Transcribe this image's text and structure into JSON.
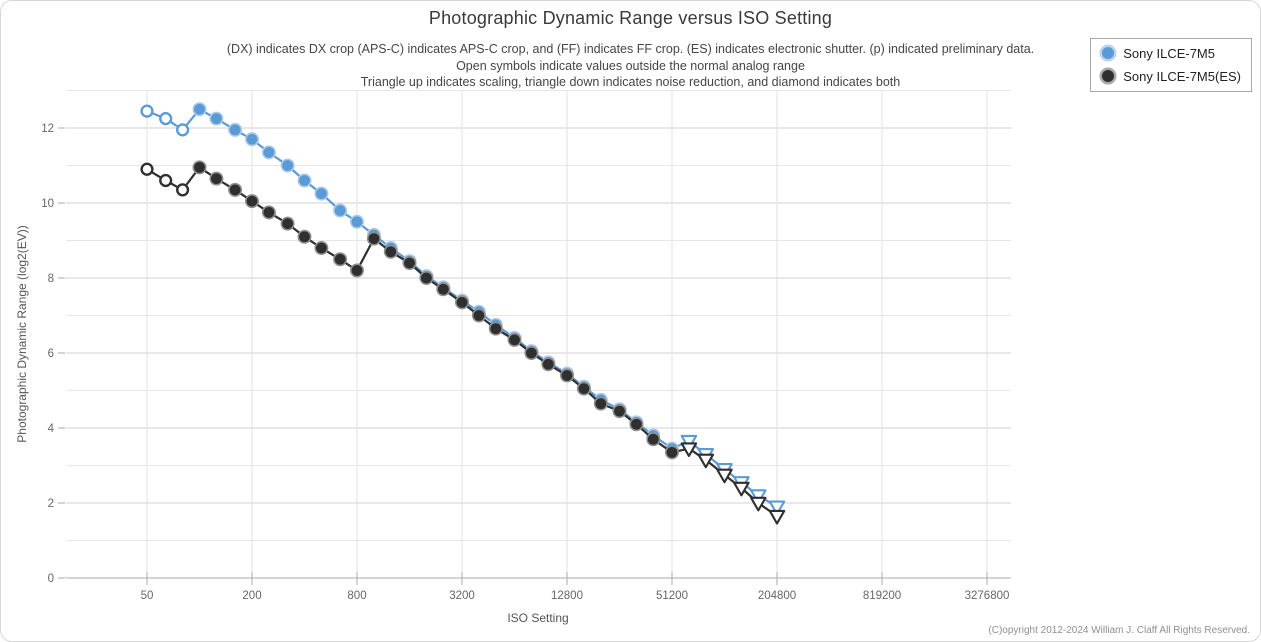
{
  "title": "Photographic Dynamic Range versus ISO Setting",
  "subtitle_lines": [
    "(DX) indicates DX crop (APS-C) indicates APS-C crop, and (FF) indicates FF crop. (ES) indicates electronic shutter. (p) indicated preliminary data.",
    "Open symbols indicate values outside the normal analog range",
    "Triangle up indicates scaling, triangle down indicates noise reduction, and diamond indicates both"
  ],
  "legend": {
    "items": [
      {
        "label": "Sony ILCE-7M5",
        "color": "#5b9bd5"
      },
      {
        "label": "Sony ILCE-7M5(ES)",
        "color": "#2f2f2f"
      }
    ]
  },
  "footer": "(C)opyright 2012-2024 William J. Claff All Rights Reserved.",
  "chart_data": {
    "type": "line",
    "title": "Photographic Dynamic Range versus ISO Setting",
    "xlabel": "ISO Setting",
    "ylabel": "Photographic Dynamic Range (log2(EV))",
    "x_scale": "log",
    "x_ticks": [
      50,
      200,
      800,
      3200,
      12800,
      51200,
      204800,
      819200,
      3276800
    ],
    "y_ticks": [
      0,
      2,
      4,
      6,
      8,
      10,
      12
    ],
    "ylim": [
      0,
      13
    ],
    "grid": true,
    "legend_position": "top-right",
    "marker_meaning": {
      "open_symbol": "value outside the normal analog range",
      "triangle_down": "noise reduction",
      "triangle_up": "scaling",
      "diamond": "both scaling and noise reduction"
    },
    "series": [
      {
        "name": "Sony ILCE-7M5",
        "color": "#5b9bd5",
        "halo": "#abc9ec",
        "points": [
          {
            "iso": 50,
            "ev": 12.45,
            "marker": "open-circle"
          },
          {
            "iso": 64,
            "ev": 12.25,
            "marker": "open-circle"
          },
          {
            "iso": 80,
            "ev": 11.95,
            "marker": "open-circle"
          },
          {
            "iso": 100,
            "ev": 12.5,
            "marker": "circle"
          },
          {
            "iso": 125,
            "ev": 12.25,
            "marker": "circle"
          },
          {
            "iso": 160,
            "ev": 11.95,
            "marker": "circle"
          },
          {
            "iso": 200,
            "ev": 11.7,
            "marker": "circle"
          },
          {
            "iso": 250,
            "ev": 11.35,
            "marker": "circle"
          },
          {
            "iso": 320,
            "ev": 11.0,
            "marker": "circle"
          },
          {
            "iso": 400,
            "ev": 10.6,
            "marker": "circle"
          },
          {
            "iso": 500,
            "ev": 10.25,
            "marker": "circle"
          },
          {
            "iso": 640,
            "ev": 9.8,
            "marker": "circle"
          },
          {
            "iso": 800,
            "ev": 9.5,
            "marker": "circle"
          },
          {
            "iso": 1000,
            "ev": 9.15,
            "marker": "circle"
          },
          {
            "iso": 1250,
            "ev": 8.8,
            "marker": "circle"
          },
          {
            "iso": 1600,
            "ev": 8.45,
            "marker": "circle"
          },
          {
            "iso": 2000,
            "ev": 8.05,
            "marker": "circle"
          },
          {
            "iso": 2500,
            "ev": 7.75,
            "marker": "circle"
          },
          {
            "iso": 3200,
            "ev": 7.4,
            "marker": "circle"
          },
          {
            "iso": 4000,
            "ev": 7.1,
            "marker": "circle"
          },
          {
            "iso": 5000,
            "ev": 6.75,
            "marker": "circle"
          },
          {
            "iso": 6400,
            "ev": 6.4,
            "marker": "circle"
          },
          {
            "iso": 8000,
            "ev": 6.05,
            "marker": "circle"
          },
          {
            "iso": 10000,
            "ev": 5.75,
            "marker": "circle"
          },
          {
            "iso": 12800,
            "ev": 5.45,
            "marker": "circle"
          },
          {
            "iso": 16000,
            "ev": 5.1,
            "marker": "circle"
          },
          {
            "iso": 20000,
            "ev": 4.75,
            "marker": "circle"
          },
          {
            "iso": 25600,
            "ev": 4.5,
            "marker": "circle"
          },
          {
            "iso": 32000,
            "ev": 4.15,
            "marker": "circle"
          },
          {
            "iso": 40000,
            "ev": 3.8,
            "marker": "circle"
          },
          {
            "iso": 51200,
            "ev": 3.45,
            "marker": "circle"
          },
          {
            "iso": 64000,
            "ev": 3.65,
            "marker": "triangle-down-open"
          },
          {
            "iso": 80000,
            "ev": 3.3,
            "marker": "triangle-down-open"
          },
          {
            "iso": 102400,
            "ev": 2.9,
            "marker": "triangle-down-open"
          },
          {
            "iso": 128000,
            "ev": 2.55,
            "marker": "triangle-down-open"
          },
          {
            "iso": 160000,
            "ev": 2.2,
            "marker": "triangle-down-open"
          },
          {
            "iso": 204800,
            "ev": 1.9,
            "marker": "triangle-down-open"
          }
        ]
      },
      {
        "name": "Sony ILCE-7M5(ES)",
        "color": "#2f2f2f",
        "halo": "#8f8f8f",
        "points": [
          {
            "iso": 50,
            "ev": 10.9,
            "marker": "open-circle"
          },
          {
            "iso": 64,
            "ev": 10.6,
            "marker": "open-circle"
          },
          {
            "iso": 80,
            "ev": 10.35,
            "marker": "open-circle"
          },
          {
            "iso": 100,
            "ev": 10.95,
            "marker": "circle"
          },
          {
            "iso": 125,
            "ev": 10.65,
            "marker": "circle"
          },
          {
            "iso": 160,
            "ev": 10.35,
            "marker": "circle"
          },
          {
            "iso": 200,
            "ev": 10.05,
            "marker": "circle"
          },
          {
            "iso": 250,
            "ev": 9.75,
            "marker": "circle"
          },
          {
            "iso": 320,
            "ev": 9.45,
            "marker": "circle"
          },
          {
            "iso": 400,
            "ev": 9.1,
            "marker": "circle"
          },
          {
            "iso": 500,
            "ev": 8.8,
            "marker": "circle"
          },
          {
            "iso": 640,
            "ev": 8.5,
            "marker": "circle"
          },
          {
            "iso": 800,
            "ev": 8.2,
            "marker": "circle"
          },
          {
            "iso": 1000,
            "ev": 9.05,
            "marker": "circle"
          },
          {
            "iso": 1250,
            "ev": 8.7,
            "marker": "circle"
          },
          {
            "iso": 1600,
            "ev": 8.4,
            "marker": "circle"
          },
          {
            "iso": 2000,
            "ev": 8.0,
            "marker": "circle"
          },
          {
            "iso": 2500,
            "ev": 7.7,
            "marker": "circle"
          },
          {
            "iso": 3200,
            "ev": 7.35,
            "marker": "circle"
          },
          {
            "iso": 4000,
            "ev": 7.0,
            "marker": "circle"
          },
          {
            "iso": 5000,
            "ev": 6.65,
            "marker": "circle"
          },
          {
            "iso": 6400,
            "ev": 6.35,
            "marker": "circle"
          },
          {
            "iso": 8000,
            "ev": 6.0,
            "marker": "circle"
          },
          {
            "iso": 10000,
            "ev": 5.7,
            "marker": "circle"
          },
          {
            "iso": 12800,
            "ev": 5.4,
            "marker": "circle"
          },
          {
            "iso": 16000,
            "ev": 5.05,
            "marker": "circle"
          },
          {
            "iso": 20000,
            "ev": 4.65,
            "marker": "circle"
          },
          {
            "iso": 25600,
            "ev": 4.45,
            "marker": "circle"
          },
          {
            "iso": 32000,
            "ev": 4.1,
            "marker": "circle"
          },
          {
            "iso": 40000,
            "ev": 3.7,
            "marker": "circle"
          },
          {
            "iso": 51200,
            "ev": 3.35,
            "marker": "circle"
          },
          {
            "iso": 64000,
            "ev": 3.45,
            "marker": "triangle-down-open"
          },
          {
            "iso": 80000,
            "ev": 3.15,
            "marker": "triangle-down-open"
          },
          {
            "iso": 102400,
            "ev": 2.75,
            "marker": "triangle-down-open"
          },
          {
            "iso": 128000,
            "ev": 2.4,
            "marker": "triangle-down-open"
          },
          {
            "iso": 160000,
            "ev": 2.0,
            "marker": "triangle-down-open"
          },
          {
            "iso": 204800,
            "ev": 1.65,
            "marker": "triangle-down-open"
          }
        ]
      }
    ]
  }
}
